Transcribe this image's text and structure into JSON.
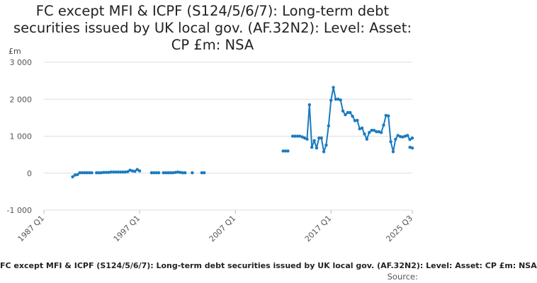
{
  "chart_data": {
    "type": "line",
    "title_lines": [
      "FC except MFI & ICPF (S124/5/6/7): Long-term debt",
      "securities issued by UK local gov. (AF.32N2): Level: Asset:",
      "CP £m: NSA"
    ],
    "ylabel": "£m",
    "yticks": [
      {
        "value": 3000,
        "label": "3 000"
      },
      {
        "value": 2000,
        "label": "2 000"
      },
      {
        "value": 1000,
        "label": "1 000"
      },
      {
        "value": 0,
        "label": "0"
      },
      {
        "value": -1000,
        "label": "-1 000"
      }
    ],
    "xticks": [
      {
        "value": 1987.0,
        "label": "1987 Q1"
      },
      {
        "value": 1997.0,
        "label": "1997 Q1"
      },
      {
        "value": 2007.0,
        "label": "2007 Q1"
      },
      {
        "value": 2017.0,
        "label": "2017 Q1"
      },
      {
        "value": 2025.5,
        "label": "2025 Q3"
      }
    ],
    "xlim": [
      1987.0,
      2025.5
    ],
    "ylim": [
      -1000,
      3000
    ],
    "grid": "horizontal",
    "color": "#1a7bbf",
    "legend_text": "FC except MFI & ICPF (S124/5/6/7): Long-term debt securities issued by UK local gov. (AF.32N2): Level: Asset: CP £m: NSA",
    "source_label": "Source:",
    "series": [
      {
        "x": [
          1990.0,
          1990.25,
          1990.5,
          1990.75,
          1991.0,
          1991.25,
          1991.5,
          1991.75,
          1992.0
        ],
        "y": [
          -100,
          -50,
          -40,
          10,
          10,
          10,
          10,
          10,
          10
        ]
      },
      {
        "x": [
          1992.5,
          1992.75,
          1993.0,
          1993.25,
          1993.5,
          1993.75,
          1994.0,
          1994.25,
          1994.5,
          1994.75,
          1995.0,
          1995.25,
          1995.5,
          1995.75,
          1996.0,
          1996.25,
          1996.5,
          1996.75,
          1997.0
        ],
        "y": [
          10,
          10,
          10,
          20,
          20,
          20,
          30,
          30,
          30,
          30,
          30,
          30,
          30,
          40,
          80,
          60,
          50,
          100,
          60
        ]
      },
      {
        "x": [
          1998.25,
          1998.5,
          1998.75,
          1999.0
        ],
        "y": [
          10,
          10,
          10,
          10
        ]
      },
      {
        "x": [
          1999.5,
          1999.75,
          2000.0,
          2000.25,
          2000.5,
          2000.75,
          2001.0,
          2001.25,
          2001.5,
          2001.75
        ],
        "y": [
          10,
          10,
          10,
          10,
          10,
          20,
          30,
          20,
          10,
          10
        ]
      },
      {
        "x": [
          2002.5
        ],
        "y": [
          10
        ]
      },
      {
        "x": [
          2003.5,
          2003.75
        ],
        "y": [
          10,
          10
        ]
      },
      {
        "x": [
          2012.0,
          2012.25,
          2012.5
        ],
        "y": [
          600,
          600,
          600
        ]
      },
      {
        "x": [
          2013.0,
          2013.25,
          2013.5,
          2013.75,
          2014.0,
          2014.25,
          2014.5,
          2014.75,
          2015.0,
          2015.25,
          2015.5,
          2015.75,
          2016.0,
          2016.25,
          2016.5,
          2016.75,
          2017.0,
          2017.25,
          2017.5,
          2017.75,
          2018.0,
          2018.25,
          2018.5,
          2018.75,
          2019.0,
          2019.25,
          2019.5,
          2019.75,
          2020.0,
          2020.25,
          2020.5,
          2020.75,
          2021.0,
          2021.25,
          2021.5,
          2021.75,
          2022.0,
          2022.25,
          2022.5,
          2022.75,
          2023.0,
          2023.25,
          2023.5,
          2023.75,
          2024.0,
          2024.25,
          2024.5,
          2024.75,
          2025.0,
          2025.25,
          2025.5
        ],
        "y": [
          1000,
          1000,
          1000,
          1000,
          980,
          950,
          920,
          1850,
          700,
          880,
          680,
          950,
          950,
          580,
          760,
          1280,
          1970,
          2320,
          2000,
          2000,
          1980,
          1680,
          1580,
          1640,
          1640,
          1540,
          1420,
          1430,
          1200,
          1220,
          1060,
          920,
          1100,
          1160,
          1160,
          1120,
          1120,
          1100,
          1300,
          1560,
          1550,
          850,
          580,
          920,
          1020,
          990,
          980,
          1000,
          1020,
          910,
          950
        ]
      },
      {
        "x": [
          2025.25,
          2025.5
        ],
        "y": [
          700,
          680
        ]
      }
    ]
  }
}
